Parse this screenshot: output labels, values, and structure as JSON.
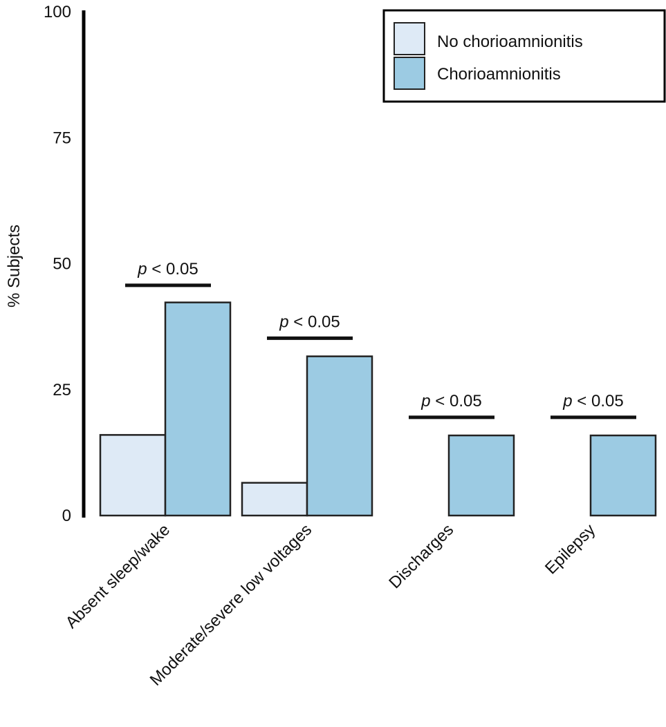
{
  "chart_data": {
    "type": "bar",
    "title": "",
    "xlabel": "",
    "ylabel": "% Subjects",
    "ylim": [
      0,
      100
    ],
    "yticks": [
      0,
      25,
      50,
      75,
      100
    ],
    "grid": false,
    "legend_position": "top-right",
    "categories": [
      "Absent sleep/wake",
      "Moderate/severe low voltages",
      "Discharges",
      "Epilepsy"
    ],
    "series": [
      {
        "name": "No chorioamnionitis",
        "color": "#deeaf6",
        "values": [
          16,
          6.5,
          0,
          0
        ]
      },
      {
        "name": "Chorioamnionitis",
        "color": "#9ccbe3",
        "values": [
          42.3,
          31.6,
          15.9,
          15.9
        ]
      }
    ],
    "annotations": [
      {
        "category": 0,
        "text_italic": "p",
        "text_rest": " < 0.05",
        "level": 45.7
      },
      {
        "category": 1,
        "text_italic": "p",
        "text_rest": " < 0.05",
        "level": 35.2
      },
      {
        "category": 2,
        "text_italic": "p",
        "text_rest": " < 0.05",
        "level": 19.5
      },
      {
        "category": 3,
        "text_italic": "p",
        "text_rest": " < 0.05",
        "level": 19.5
      }
    ]
  }
}
